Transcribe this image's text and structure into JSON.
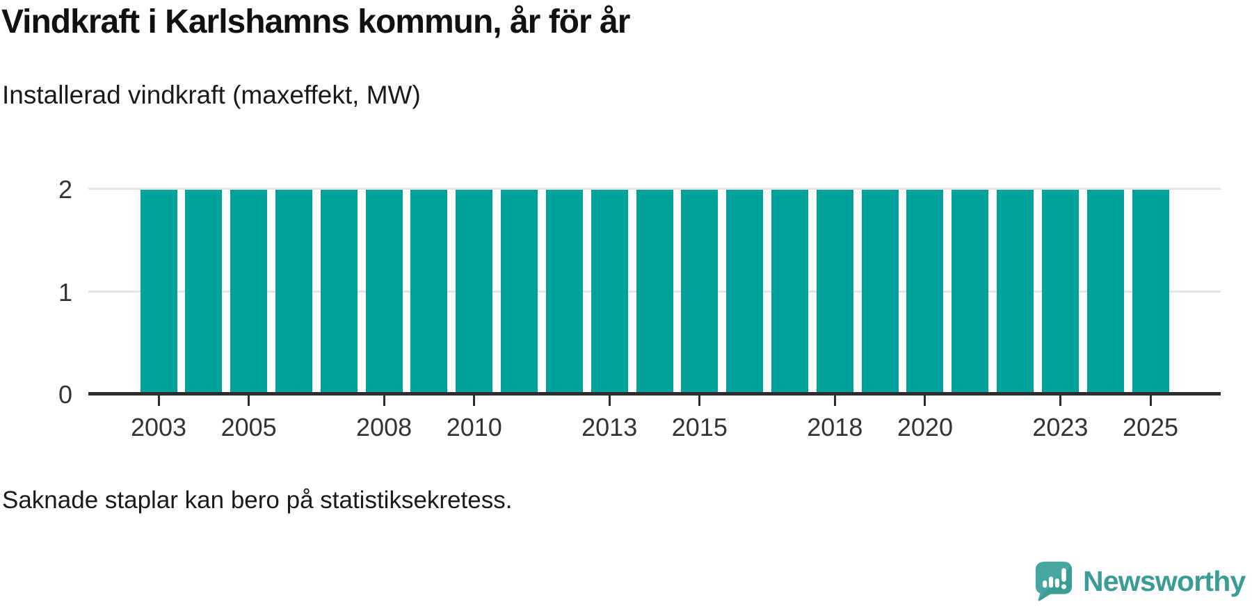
{
  "header": {
    "title": "Vindkraft i Karlshamns kommun, år för år",
    "subtitle": "Installerad vindkraft (maxeffekt, MW)"
  },
  "footnote": "Saknade staplar kan bero på statistiksekretess.",
  "branding": {
    "label": "Newsworthy",
    "icon": "newsworthy-speech-bubble-bar-chart-icon",
    "icon_color": "#46a79f",
    "icon_shade_color": "#31938b",
    "text_color": "#3a9c95"
  },
  "colors": {
    "bar": "#00a29b",
    "axis": "#2d2d2d",
    "grid": "#e4e4e4",
    "tick_text": "#333333",
    "title_text": "#111111",
    "background": "#ffffff"
  },
  "chart_data": {
    "type": "bar",
    "title": "Vindkraft i Karlshamns kommun, år för år",
    "subtitle": "Installerad vindkraft (maxeffekt, MW)",
    "xlabel": "",
    "ylabel": "Installerad vindkraft (maxeffekt, MW)",
    "categories": [
      "2003",
      "2004",
      "2005",
      "2006",
      "2007",
      "2008",
      "2009",
      "2010",
      "2011",
      "2012",
      "2013",
      "2014",
      "2015",
      "2016",
      "2017",
      "2018",
      "2019",
      "2020",
      "2021",
      "2022",
      "2023",
      "2024",
      "2025"
    ],
    "values": [
      2,
      2,
      2,
      2,
      2,
      2,
      2,
      2,
      2,
      2,
      2,
      2,
      2,
      2,
      2,
      2,
      2,
      2,
      2,
      2,
      2,
      2,
      2
    ],
    "x_tick_labels": [
      "2003",
      "2005",
      "2008",
      "2010",
      "2013",
      "2015",
      "2018",
      "2020",
      "2023",
      "2025"
    ],
    "y_ticks": [
      0,
      1,
      2
    ],
    "ylim": [
      0,
      2
    ],
    "grid": "horizontal, light gray, behind bars",
    "legend": "none",
    "note": "Saknade staplar kan bero på statistiksekretess."
  }
}
